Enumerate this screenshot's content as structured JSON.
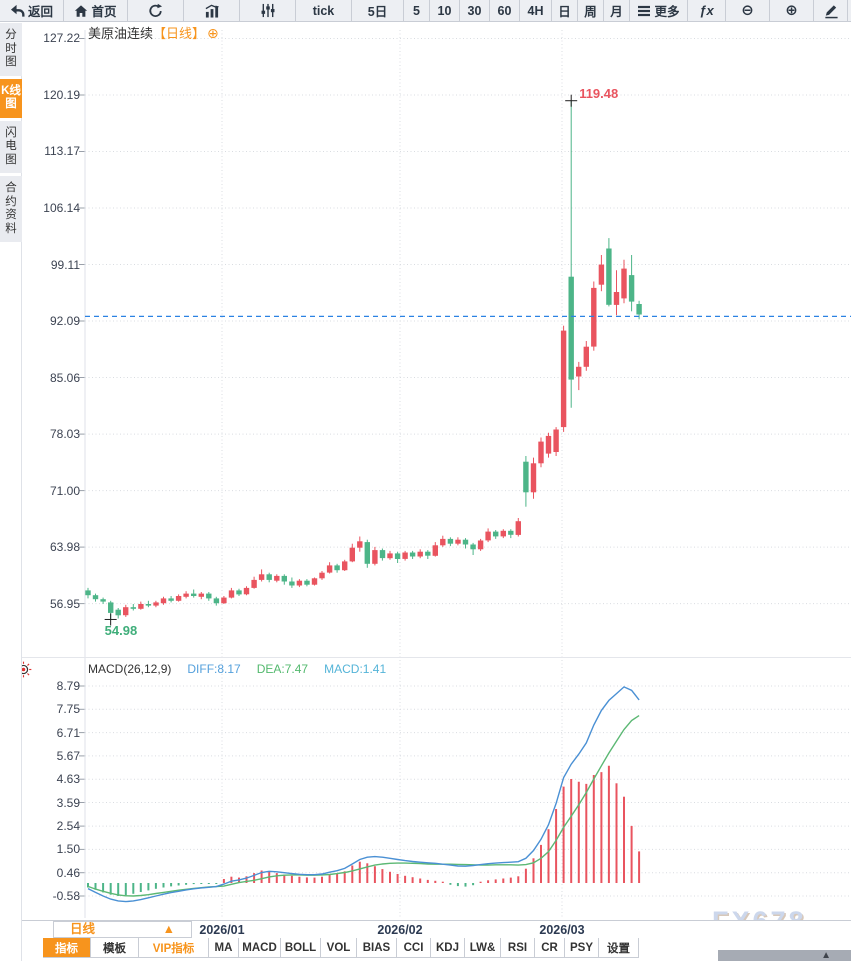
{
  "toolbar": {
    "items": [
      {
        "id": "back",
        "icon": "back-icon",
        "label": "返回"
      },
      {
        "id": "home",
        "icon": "home-icon",
        "label": "首页"
      },
      {
        "id": "refresh",
        "icon": "refresh-icon",
        "label": ""
      },
      {
        "id": "bar-chart",
        "icon": "bar-chart-icon",
        "label": ""
      },
      {
        "id": "candlestick",
        "icon": "sliders-icon",
        "label": ""
      },
      {
        "id": "tick",
        "icon": "",
        "label": "tick"
      },
      {
        "id": "5d",
        "icon": "",
        "label": "5日"
      },
      {
        "id": "5",
        "icon": "",
        "label": "5"
      },
      {
        "id": "10",
        "icon": "",
        "label": "10"
      },
      {
        "id": "30",
        "icon": "",
        "label": "30"
      },
      {
        "id": "60",
        "icon": "",
        "label": "60"
      },
      {
        "id": "4h",
        "icon": "",
        "label": "4H"
      },
      {
        "id": "day",
        "icon": "",
        "label": "日"
      },
      {
        "id": "week",
        "icon": "",
        "label": "周"
      },
      {
        "id": "month",
        "icon": "",
        "label": "月"
      },
      {
        "id": "more",
        "icon": "menu-icon",
        "label": "更多"
      },
      {
        "id": "fx",
        "icon": "fx-glyph",
        "label": "ƒx"
      },
      {
        "id": "zoom-out",
        "icon": "zoom-out-glyph",
        "label": "⊖"
      },
      {
        "id": "zoom-in",
        "icon": "zoom-in-glyph",
        "label": "⊕"
      },
      {
        "id": "draw",
        "icon": "pen-icon",
        "label": ""
      }
    ]
  },
  "sidebar": {
    "items": [
      {
        "label": "分时图",
        "active": false
      },
      {
        "label": "K线图",
        "active": true
      },
      {
        "label": "闪电图",
        "active": false
      },
      {
        "label": "合约资料",
        "active": false
      }
    ]
  },
  "chart": {
    "title": "美原油连续",
    "period_tag": "【日线】",
    "add_icon": "⊕",
    "y_axis": [
      "127.22",
      "120.19",
      "113.17",
      "106.14",
      "99.11",
      "92.09",
      "85.06",
      "78.03",
      "71.00",
      "63.98",
      "56.95"
    ],
    "price_line": 92.66,
    "high_annotation": {
      "text": "119.48",
      "price": 119.48,
      "index": 64
    },
    "low_annotation": {
      "text": "54.98",
      "price": 54.98,
      "index": 3
    },
    "x_axis": {
      "labels": [
        "2026/01",
        "2026/02",
        "2026/03"
      ],
      "positions": [
        222,
        400,
        562
      ]
    },
    "candles": [
      [
        58.6,
        58.9,
        57.6,
        58.0
      ],
      [
        58.0,
        58.2,
        57.2,
        57.5
      ],
      [
        57.5,
        57.7,
        56.9,
        57.2
      ],
      [
        57.1,
        57.3,
        54.98,
        55.8
      ],
      [
        56.2,
        56.4,
        55.1,
        55.5
      ],
      [
        55.5,
        56.8,
        55.3,
        56.5
      ],
      [
        56.5,
        56.9,
        56.1,
        56.3
      ],
      [
        56.3,
        57.2,
        56.2,
        56.9
      ],
      [
        56.9,
        57.3,
        56.5,
        56.7
      ],
      [
        56.7,
        57.3,
        56.5,
        57.1
      ],
      [
        57.0,
        57.8,
        56.8,
        57.6
      ],
      [
        57.6,
        57.9,
        57.1,
        57.3
      ],
      [
        57.3,
        58.1,
        57.2,
        57.9
      ],
      [
        57.8,
        58.5,
        57.6,
        58.2
      ],
      [
        58.2,
        58.7,
        57.7,
        57.9
      ],
      [
        57.8,
        58.4,
        57.5,
        58.2
      ],
      [
        58.2,
        58.4,
        57.3,
        57.6
      ],
      [
        57.6,
        57.8,
        56.7,
        57.0
      ],
      [
        57.0,
        57.9,
        56.9,
        57.7
      ],
      [
        57.7,
        58.9,
        57.6,
        58.6
      ],
      [
        58.6,
        58.8,
        57.9,
        58.1
      ],
      [
        58.1,
        59.1,
        58.0,
        58.9
      ],
      [
        58.9,
        60.3,
        58.8,
        59.9
      ],
      [
        59.9,
        61.2,
        59.7,
        60.6
      ],
      [
        60.6,
        60.8,
        59.6,
        59.9
      ],
      [
        59.8,
        60.6,
        59.6,
        60.4
      ],
      [
        60.4,
        60.6,
        59.3,
        59.7
      ],
      [
        59.7,
        60.2,
        58.9,
        59.2
      ],
      [
        59.2,
        60.0,
        59.0,
        59.8
      ],
      [
        59.8,
        60.0,
        59.1,
        59.3
      ],
      [
        59.3,
        60.2,
        59.2,
        60.1
      ],
      [
        60.1,
        61.0,
        59.9,
        60.8
      ],
      [
        60.8,
        62.1,
        60.7,
        61.7
      ],
      [
        61.7,
        61.9,
        60.8,
        61.1
      ],
      [
        61.1,
        62.4,
        61.0,
        62.2
      ],
      [
        62.2,
        64.4,
        62.1,
        63.9
      ],
      [
        63.9,
        65.3,
        63.4,
        64.7
      ],
      [
        64.6,
        64.9,
        61.4,
        61.9
      ],
      [
        61.9,
        64.0,
        61.7,
        63.6
      ],
      [
        63.6,
        63.8,
        62.3,
        62.6
      ],
      [
        62.6,
        63.5,
        62.4,
        63.2
      ],
      [
        63.2,
        63.4,
        62.0,
        62.5
      ],
      [
        62.5,
        63.5,
        62.3,
        63.3
      ],
      [
        63.3,
        63.5,
        62.5,
        62.8
      ],
      [
        62.8,
        63.7,
        62.6,
        63.4
      ],
      [
        63.4,
        63.6,
        62.5,
        62.9
      ],
      [
        62.9,
        64.6,
        62.8,
        64.2
      ],
      [
        64.2,
        65.4,
        64.0,
        65.0
      ],
      [
        65.0,
        65.2,
        64.1,
        64.4
      ],
      [
        64.4,
        65.2,
        64.2,
        64.9
      ],
      [
        64.9,
        65.1,
        63.8,
        64.3
      ],
      [
        64.3,
        64.5,
        63.0,
        63.7
      ],
      [
        63.7,
        65.0,
        63.5,
        64.8
      ],
      [
        64.8,
        66.3,
        64.6,
        65.9
      ],
      [
        65.9,
        66.1,
        65.0,
        65.3
      ],
      [
        65.3,
        66.2,
        65.1,
        66.0
      ],
      [
        66.0,
        66.2,
        65.1,
        65.5
      ],
      [
        65.5,
        67.6,
        65.3,
        67.2
      ],
      [
        74.6,
        75.3,
        69.0,
        70.8
      ],
      [
        70.8,
        75.1,
        70.0,
        74.4
      ],
      [
        74.4,
        77.6,
        73.9,
        77.1
      ],
      [
        75.6,
        78.2,
        75.1,
        77.8
      ],
      [
        75.8,
        78.9,
        75.3,
        78.6
      ],
      [
        78.9,
        91.5,
        78.3,
        90.9
      ],
      [
        97.6,
        119.48,
        81.3,
        84.8
      ],
      [
        85.2,
        87.0,
        83.5,
        86.4
      ],
      [
        86.4,
        89.6,
        85.9,
        88.9
      ],
      [
        88.9,
        97.0,
        88.4,
        96.2
      ],
      [
        96.6,
        100.3,
        95.8,
        99.1
      ],
      [
        101.1,
        102.4,
        93.9,
        94.1
      ],
      [
        94.1,
        98.4,
        92.8,
        95.7
      ],
      [
        94.9,
        99.7,
        94.3,
        98.6
      ],
      [
        97.8,
        100.3,
        93.3,
        94.5
      ],
      [
        94.2,
        94.6,
        92.3,
        92.9
      ]
    ]
  },
  "macd": {
    "title": "MACD(26,12,9)",
    "diff_label": "DIFF:8.17",
    "dea_label": "DEA:7.47",
    "macd_label": "MACD:1.41",
    "y_axis": [
      "8.79",
      "7.75",
      "6.71",
      "5.67",
      "4.63",
      "3.59",
      "2.54",
      "1.50",
      "0.46",
      "-0.58"
    ],
    "diff": [
      -0.25,
      -0.42,
      -0.58,
      -0.72,
      -0.8,
      -0.83,
      -0.8,
      -0.74,
      -0.66,
      -0.58,
      -0.5,
      -0.43,
      -0.37,
      -0.31,
      -0.26,
      -0.22,
      -0.19,
      -0.16,
      -0.05,
      0.08,
      0.14,
      0.22,
      0.34,
      0.47,
      0.52,
      0.5,
      0.46,
      0.42,
      0.39,
      0.37,
      0.37,
      0.4,
      0.48,
      0.55,
      0.65,
      0.85,
      1.05,
      1.15,
      1.18,
      1.15,
      1.1,
      1.05,
      1.0,
      0.96,
      0.93,
      0.9,
      0.88,
      0.84,
      0.8,
      0.76,
      0.75,
      0.78,
      0.82,
      0.86,
      0.89,
      0.91,
      0.93,
      0.95,
      1.1,
      1.45,
      1.95,
      2.6,
      3.55,
      4.7,
      5.3,
      5.75,
      6.25,
      7.05,
      7.7,
      8.15,
      8.45,
      8.75,
      8.6,
      8.17
    ],
    "dea": [
      -0.15,
      -0.27,
      -0.37,
      -0.46,
      -0.53,
      -0.57,
      -0.58,
      -0.56,
      -0.52,
      -0.47,
      -0.42,
      -0.37,
      -0.32,
      -0.28,
      -0.24,
      -0.21,
      -0.18,
      -0.16,
      -0.14,
      -0.06,
      0.02,
      0.07,
      0.12,
      0.19,
      0.27,
      0.32,
      0.35,
      0.36,
      0.36,
      0.35,
      0.35,
      0.36,
      0.38,
      0.42,
      0.47,
      0.54,
      0.63,
      0.72,
      0.8,
      0.85,
      0.88,
      0.89,
      0.89,
      0.88,
      0.87,
      0.85,
      0.84,
      0.84,
      0.84,
      0.83,
      0.82,
      0.81,
      0.8,
      0.8,
      0.81,
      0.81,
      0.81,
      0.8,
      0.82,
      0.9,
      1.1,
      1.4,
      1.9,
      2.48,
      2.98,
      3.49,
      4.04,
      4.64,
      5.23,
      5.8,
      6.33,
      6.85,
      7.25,
      7.47
    ],
    "hist": [
      -0.2,
      -0.3,
      -0.42,
      -0.52,
      -0.58,
      -0.55,
      -0.48,
      -0.4,
      -0.33,
      -0.26,
      -0.2,
      -0.15,
      -0.11,
      -0.08,
      -0.05,
      -0.03,
      -0.02,
      -0.01,
      0.18,
      0.28,
      0.24,
      0.3,
      0.44,
      0.56,
      0.5,
      0.44,
      0.38,
      0.32,
      0.28,
      0.25,
      0.24,
      0.28,
      0.38,
      0.4,
      0.52,
      0.78,
      0.95,
      0.88,
      0.75,
      0.62,
      0.5,
      0.4,
      0.32,
      0.26,
      0.2,
      0.14,
      0.1,
      0.06,
      -0.08,
      -0.14,
      -0.16,
      -0.1,
      0.06,
      0.12,
      0.16,
      0.2,
      0.24,
      0.3,
      0.64,
      1.1,
      1.7,
      2.4,
      3.3,
      4.3,
      4.64,
      4.52,
      4.42,
      4.82,
      4.95,
      5.23,
      4.45,
      3.85,
      2.55,
      1.41
    ]
  },
  "bottom": {
    "period_selector": "日线",
    "period_arrow": "▲",
    "scroll_arrow": "▲",
    "tabs": [
      {
        "label": "指标",
        "active": true,
        "vip": false
      },
      {
        "label": "模板",
        "active": false,
        "vip": false
      },
      {
        "label": "VIP指标",
        "active": false,
        "vip": true
      },
      {
        "label": "MA",
        "active": false,
        "vip": false
      },
      {
        "label": "MACD",
        "active": false,
        "vip": false
      },
      {
        "label": "BOLL",
        "active": false,
        "vip": false
      },
      {
        "label": "VOL",
        "active": false,
        "vip": false
      },
      {
        "label": "BIAS",
        "active": false,
        "vip": false
      },
      {
        "label": "CCI",
        "active": false,
        "vip": false
      },
      {
        "label": "KDJ",
        "active": false,
        "vip": false
      },
      {
        "label": "LW&",
        "active": false,
        "vip": false
      },
      {
        "label": "RSI",
        "active": false,
        "vip": false
      },
      {
        "label": "CR",
        "active": false,
        "vip": false
      },
      {
        "label": "PSY",
        "active": false,
        "vip": false
      },
      {
        "label": "设置",
        "active": false,
        "vip": false
      }
    ]
  },
  "watermark": "FX678",
  "colors": {
    "up": "#e9545f",
    "down": "#4db588",
    "diff_line": "#4a90d4",
    "dea_line": "#5cb874",
    "accent": "#f7941d",
    "price_line": "#2b82e3",
    "grid": "#d9dce1",
    "cross": "#1f1f1f"
  }
}
